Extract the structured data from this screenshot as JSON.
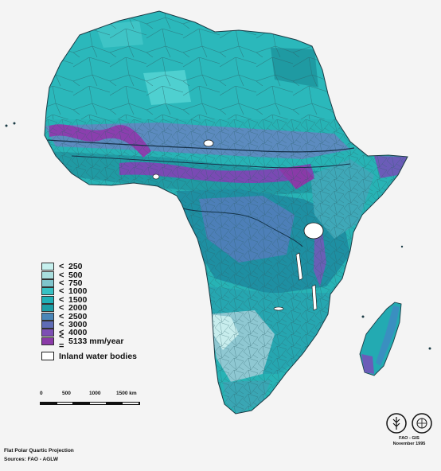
{
  "legend": {
    "items": [
      {
        "op": "<",
        "label": "250",
        "color": "#c6f0ee"
      },
      {
        "op": "<",
        "label": "500",
        "color": "#a9dede"
      },
      {
        "op": "<",
        "label": "750",
        "color": "#7fc4cc"
      },
      {
        "op": "<",
        "label": "1000",
        "color": "#36c1c4"
      },
      {
        "op": "<",
        "label": "1500",
        "color": "#20b0b6"
      },
      {
        "op": "<",
        "label": "2000",
        "color": "#1c9ea6"
      },
      {
        "op": "<",
        "label": "2500",
        "color": "#4a86b8"
      },
      {
        "op": "<",
        "label": "3000",
        "color": "#5f6cb6"
      },
      {
        "op": "<",
        "label": "4000",
        "color": "#7d4fb4"
      },
      {
        "op": "< =",
        "label": "5133 mm/year",
        "color": "#8a3aa8"
      }
    ],
    "water_label": "Inland water bodies"
  },
  "scale": {
    "ticks": [
      "0",
      "500",
      "1000",
      "1500 km"
    ]
  },
  "footer": {
    "projection": "Flat Polar Quartic Projection",
    "sources": "Sources: FAO - AGLW"
  },
  "credit": {
    "line1": "FAO - GIS",
    "line2": "November 1995"
  }
}
